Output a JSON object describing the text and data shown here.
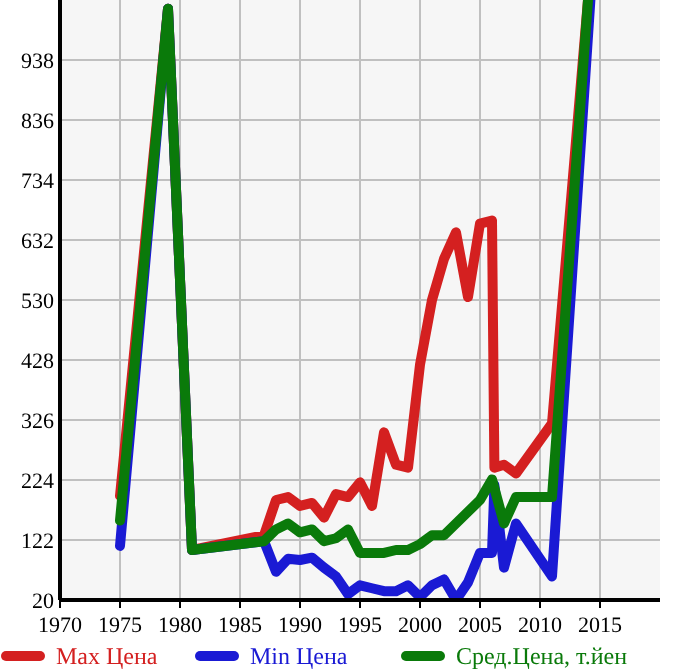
{
  "chart_data": {
    "type": "line",
    "xlim": [
      1970,
      2020
    ],
    "xticks": [
      1970,
      1975,
      1980,
      1985,
      1990,
      1995,
      2000,
      2005,
      2010,
      2015
    ],
    "ylim": [
      20,
      1040
    ],
    "yticks": [
      20,
      122,
      224,
      326,
      428,
      530,
      632,
      734,
      836,
      938
    ],
    "grid": true,
    "legend": "bottom",
    "marker": "none",
    "line_style": "solid",
    "series": [
      {
        "name": "Max Цена",
        "color": "#d42020",
        "x": [
          1975,
          1979,
          1981,
          1987,
          1988,
          1989,
          1990,
          1991,
          1992,
          1993,
          1994,
          1995,
          1996,
          1997,
          1998,
          1999,
          2000,
          2001,
          2002,
          2003,
          2004,
          2005,
          2006,
          2006.2,
          2007,
          2008,
          2011,
          2014
        ],
        "values": [
          197,
          1025,
          105,
          130,
          190,
          195,
          180,
          185,
          160,
          200,
          195,
          220,
          180,
          305,
          250,
          245,
          420,
          530,
          600,
          645,
          535,
          660,
          665,
          245,
          250,
          235,
          320,
          1040
        ]
      },
      {
        "name": "Min Цена",
        "color": "#1a1ad4",
        "x": [
          1975,
          1979,
          1981,
          1987,
          1988,
          1989,
          1990,
          1991,
          1992,
          1993,
          1994,
          1995,
          1996,
          1997,
          1998,
          1999,
          2000,
          2001,
          2002,
          2003,
          2004,
          2005,
          2006,
          2006.2,
          2007,
          2008,
          2011,
          2014.2
        ],
        "values": [
          112,
          1025,
          105,
          120,
          68,
          90,
          88,
          92,
          75,
          60,
          30,
          45,
          40,
          35,
          35,
          45,
          25,
          45,
          55,
          20,
          50,
          100,
          100,
          215,
          75,
          150,
          60,
          1040
        ]
      },
      {
        "name": "Сред.Цена, т.йен",
        "color": "#0a7a0a",
        "x": [
          1975,
          1979,
          1981,
          1987,
          1988,
          1989,
          1990,
          1991,
          1992,
          1993,
          1994,
          1995,
          1996,
          1997,
          1998,
          1999,
          2000,
          2001,
          2002,
          2003,
          2004,
          2005,
          2006,
          2007,
          2008,
          2011,
          2014
        ],
        "values": [
          155,
          1025,
          105,
          120,
          140,
          150,
          135,
          140,
          120,
          125,
          140,
          100,
          100,
          100,
          105,
          105,
          115,
          130,
          130,
          150,
          170,
          190,
          225,
          150,
          195,
          195,
          1040
        ]
      }
    ]
  }
}
